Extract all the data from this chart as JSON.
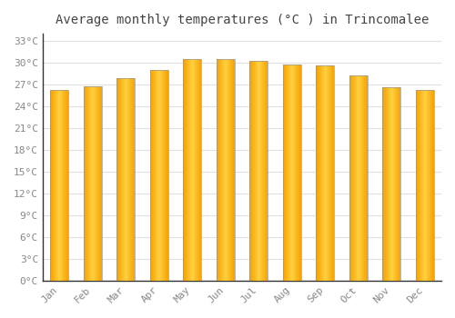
{
  "title": "Average monthly temperatures (°C ) in Trincomalee",
  "months": [
    "Jan",
    "Feb",
    "Mar",
    "Apr",
    "May",
    "Jun",
    "Jul",
    "Aug",
    "Sep",
    "Oct",
    "Nov",
    "Dec"
  ],
  "temperatures": [
    26.3,
    26.7,
    27.9,
    29.0,
    30.5,
    30.5,
    30.2,
    29.8,
    29.6,
    28.2,
    26.6,
    26.3
  ],
  "bar_color_left": "#F5A800",
  "bar_color_center": "#FFD040",
  "bar_color_right": "#F5A000",
  "bar_edge_color": "#999999",
  "background_color": "#FFFFFF",
  "grid_color": "#E0E0E0",
  "text_color": "#888888",
  "title_color": "#444444",
  "yticks": [
    0,
    3,
    6,
    9,
    12,
    15,
    18,
    21,
    24,
    27,
    30,
    33
  ],
  "ylim": [
    0,
    34
  ],
  "title_fontsize": 10,
  "tick_fontsize": 8,
  "bar_width": 0.55,
  "n_gradient_strips": 30
}
